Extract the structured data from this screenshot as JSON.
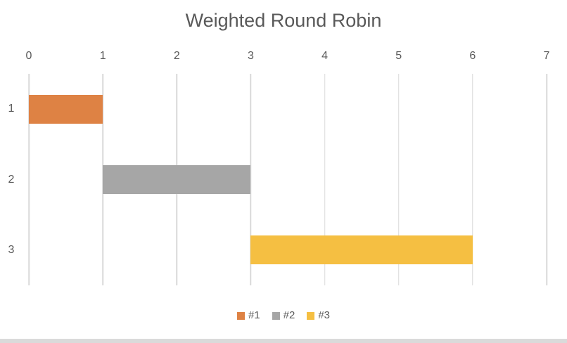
{
  "chart_data": {
    "type": "bar",
    "orientation": "horizontal",
    "title": "Weighted Round Robin",
    "xlabel": "",
    "ylabel": "",
    "x_axis": {
      "min": 0,
      "max": 7,
      "tick_labels": [
        "0",
        "1",
        "2",
        "3",
        "4",
        "5",
        "6",
        "7"
      ],
      "position": "top"
    },
    "categories": [
      "1",
      "2",
      "3"
    ],
    "series": [
      {
        "name": "#1",
        "category": "1",
        "start": 0,
        "end": 1,
        "color": "#DE8244"
      },
      {
        "name": "#2",
        "category": "2",
        "start": 1,
        "end": 3,
        "color": "#A6A6A6"
      },
      {
        "name": "#3",
        "category": "3",
        "start": 3,
        "end": 6,
        "color": "#F5BF42"
      }
    ],
    "legend": {
      "position": "bottom",
      "entries": [
        {
          "label": "#1",
          "color": "#DE8244"
        },
        {
          "label": "#2",
          "color": "#A6A6A6"
        },
        {
          "label": "#3",
          "color": "#F5BF42"
        }
      ]
    },
    "grid": true,
    "colors": {
      "gridline": "#D9D9D9",
      "text": "#595959",
      "background": "#FFFFFF",
      "window_bottom_strip": "#DADADA"
    }
  }
}
